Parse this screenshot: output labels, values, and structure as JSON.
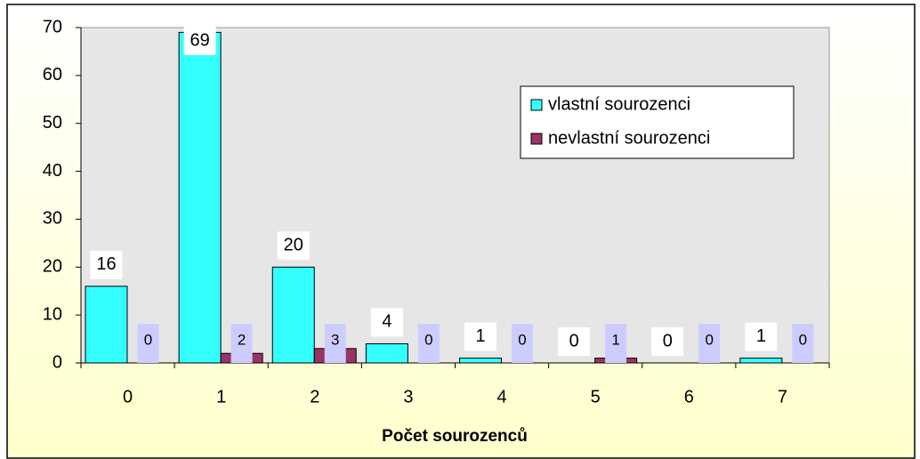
{
  "chart_data": {
    "type": "bar",
    "xlabel": "Počet sourozenců",
    "categories": [
      "0",
      "1",
      "2",
      "3",
      "4",
      "5",
      "6",
      "7"
    ],
    "series": [
      {
        "name": "vlastní sourozenci",
        "color": "#33ffff",
        "values": [
          16,
          69,
          20,
          4,
          1,
          0,
          0,
          1
        ]
      },
      {
        "name": "nevlastní sourozenci",
        "color": "#993366",
        "values": [
          0,
          2,
          3,
          0,
          0,
          1,
          0,
          0
        ]
      }
    ],
    "ylim": [
      0,
      70
    ],
    "yticks": [
      0,
      10,
      20,
      30,
      40,
      50,
      60,
      70
    ],
    "grid": false,
    "legend": "upper right"
  }
}
